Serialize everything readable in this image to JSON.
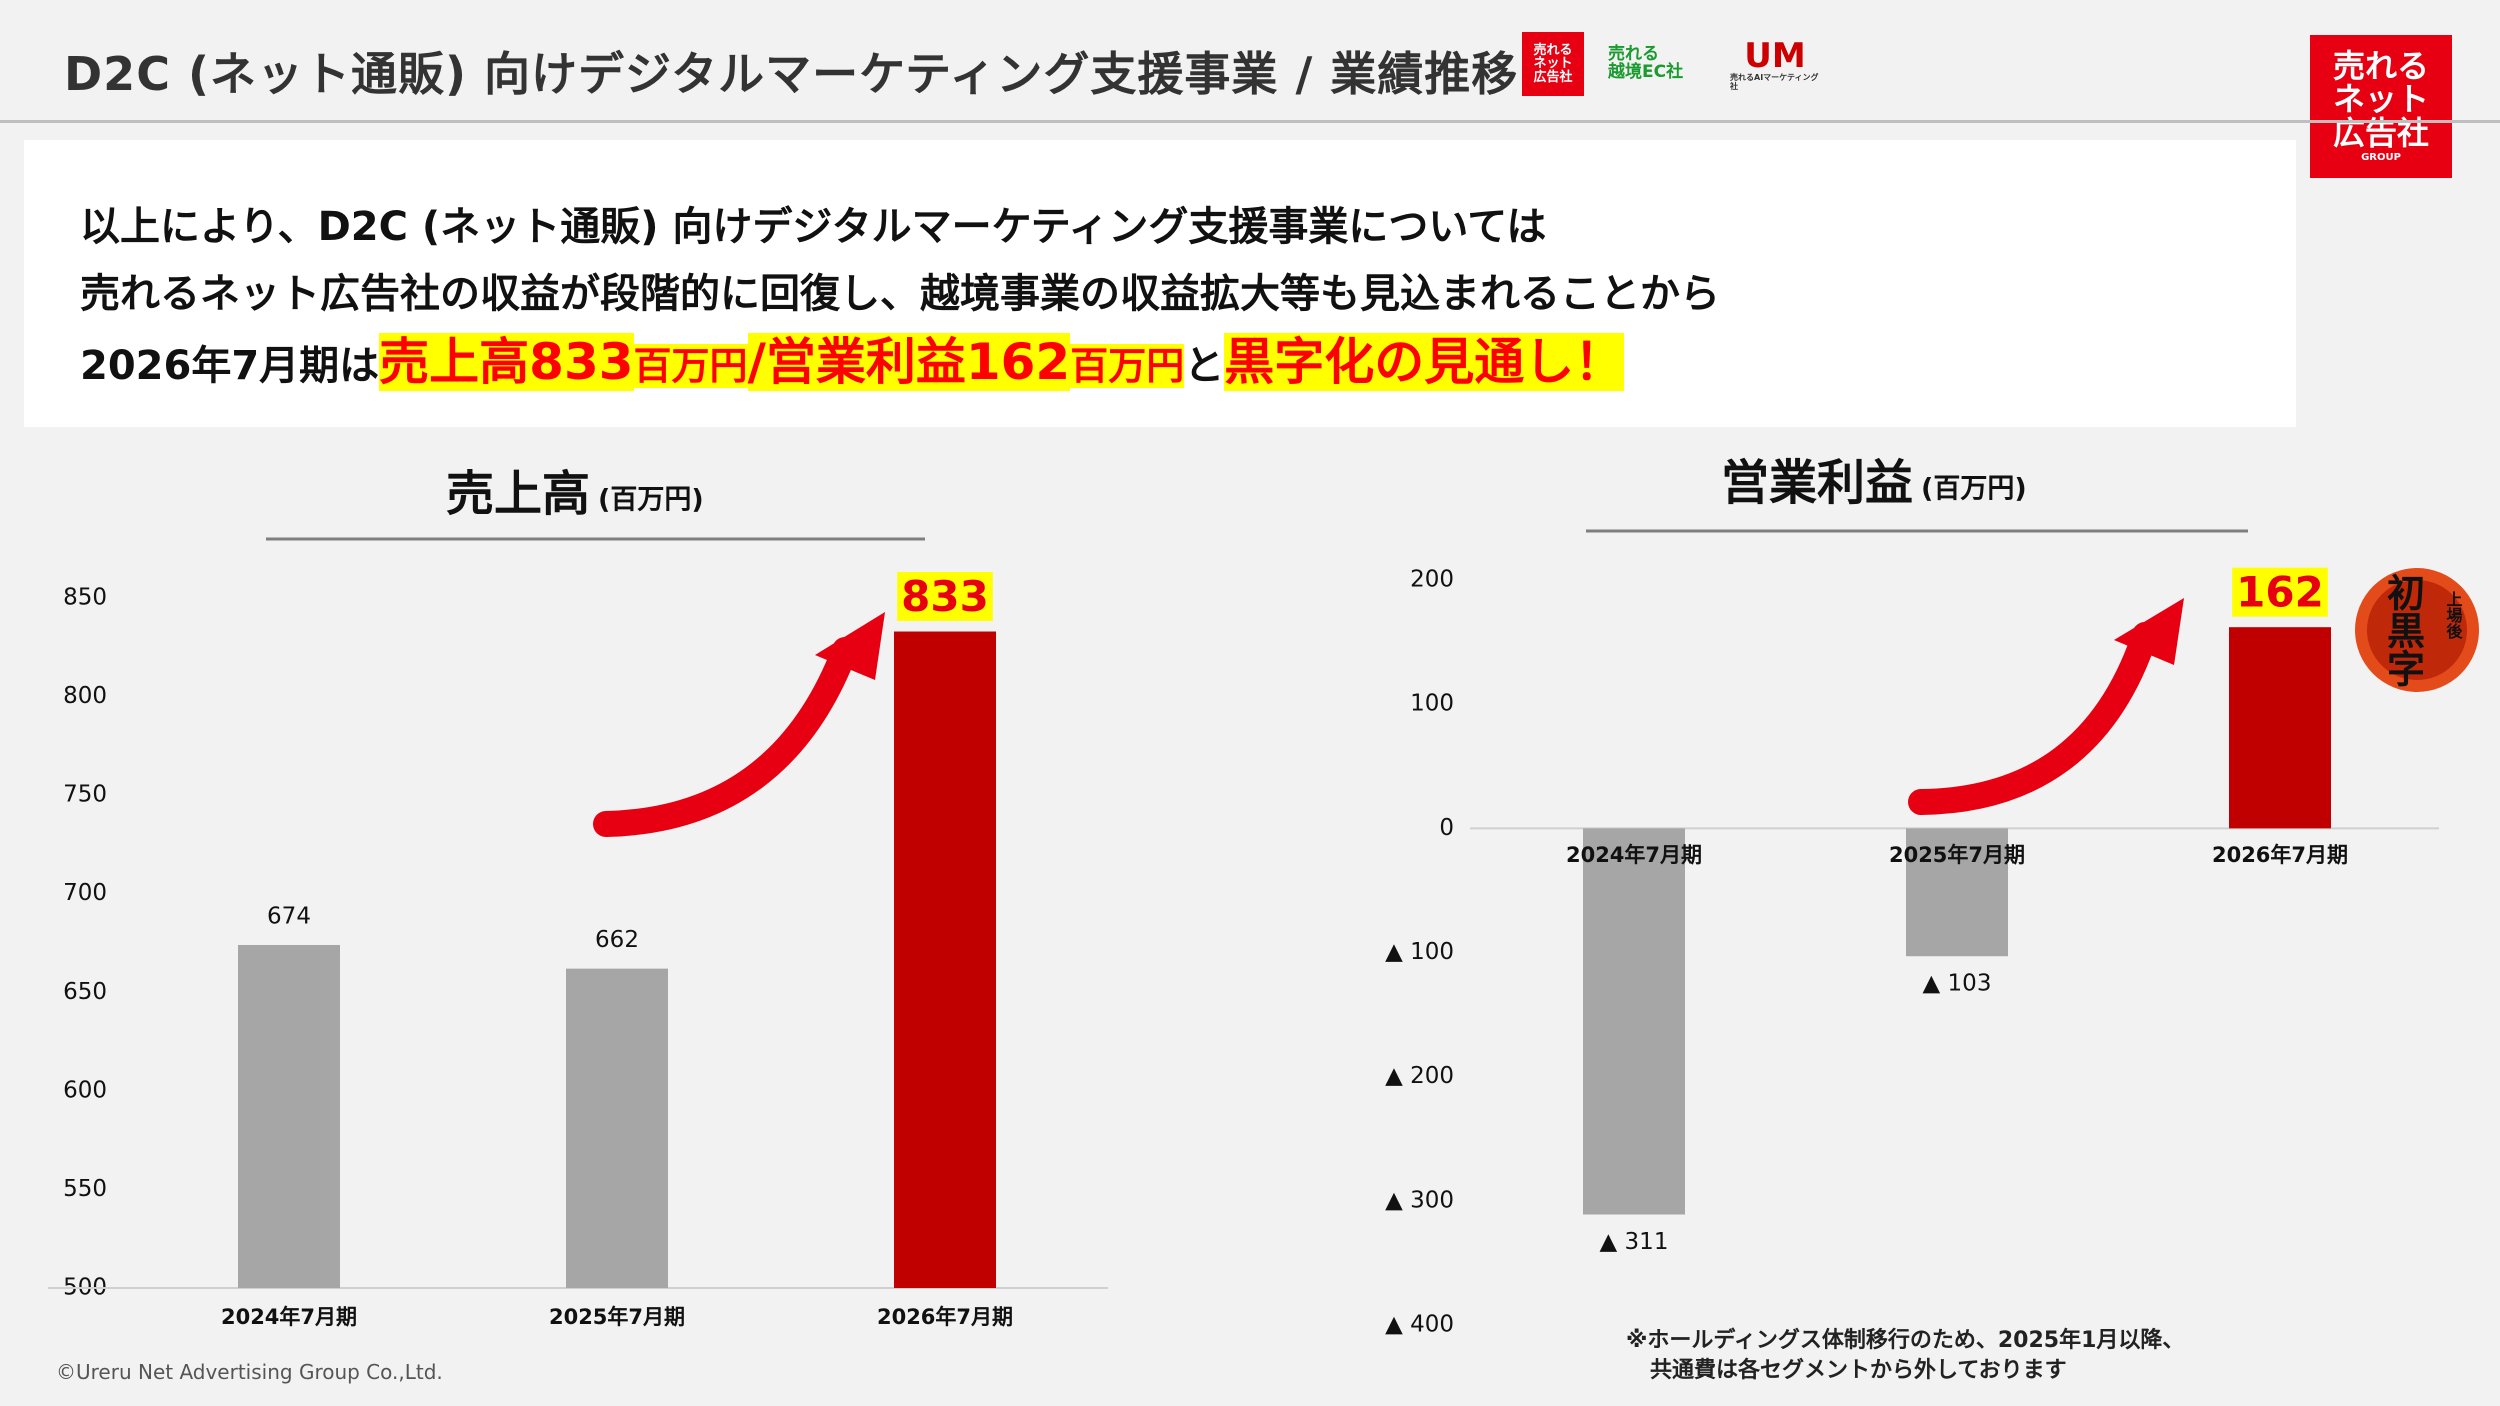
{
  "header": {
    "title": "D2C (ネット通販) 向けデジタルマーケティング支援事業 / 業績推移",
    "logo_main": [
      "売れる",
      "ネット",
      "広告社"
    ],
    "logo_ekkyo": [
      "売れる",
      "越境EC社"
    ],
    "logo_ai": [
      "UM",
      "売れるAIマーケティング社"
    ],
    "corner_logo": [
      "売れる",
      "ネット",
      "広告社",
      "GROUP"
    ]
  },
  "summary": {
    "line1": "以上により、D2C (ネット通販) 向けデジタルマーケティング支援事業については",
    "line2": "売れるネット広告社の収益が段階的に回復し、越境事業の収益拡大等も見込まれることから",
    "line3": [
      "2026年7月期は",
      "売上高833",
      "百万円",
      "/営業利益162",
      "百万円",
      "と",
      "黒字化の見通し！"
    ]
  },
  "badge": {
    "small": "上場後",
    "main": "初黒字"
  },
  "note": [
    "※ホールディングス体制移行のため、2025年1月以降、",
    "共通費は各セグメントから外しております"
  ],
  "copyright": "©Ureru Net Advertising Group Co.,Ltd.",
  "chart_data": [
    {
      "type": "bar",
      "title": "売上高",
      "unit": "(百万円)",
      "categories": [
        "2024年7月期",
        "2025年7月期",
        "2026年7月期"
      ],
      "values": [
        674,
        662,
        833
      ],
      "colors": [
        "#a6a6a6",
        "#a6a6a6",
        "#c00000"
      ],
      "ylim": [
        500,
        850
      ],
      "yticks": [
        500,
        550,
        600,
        650,
        700,
        750,
        800,
        850
      ]
    },
    {
      "type": "bar",
      "title": "営業利益",
      "unit": "(百万円)",
      "categories": [
        "2024年7月期",
        "2025年7月期",
        "2026年7月期"
      ],
      "values": [
        -311,
        -103,
        162
      ],
      "value_labels": [
        "▲ 311",
        "▲ 103",
        "162"
      ],
      "colors": [
        "#a6a6a6",
        "#a6a6a6",
        "#c00000"
      ],
      "ylim": [
        -400,
        200
      ],
      "yticks": [
        200,
        100,
        0,
        {
          "value": -100,
          "label": "▲ 100"
        },
        {
          "value": -200,
          "label": "▲ 200"
        },
        {
          "value": -300,
          "label": "▲ 300"
        },
        {
          "value": -400,
          "label": "▲ 400"
        }
      ]
    }
  ]
}
